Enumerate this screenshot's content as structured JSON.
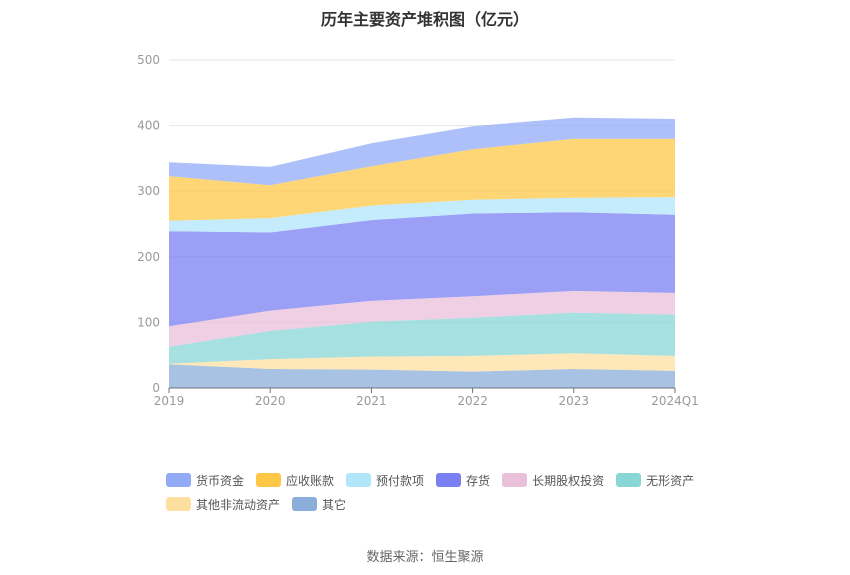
{
  "chart_data": {
    "type": "area",
    "title": "历年主要资产堆积图（亿元）",
    "categories": [
      "2019",
      "2020",
      "2021",
      "2022",
      "2023",
      "2024Q1"
    ],
    "ylim": [
      0,
      500
    ],
    "yticks": [
      "0",
      "100",
      "200",
      "300",
      "400",
      "500"
    ],
    "grid": true,
    "legend_position": "bottom",
    "series": [
      {
        "name": "其它",
        "values": [
          36,
          29,
          28,
          25,
          29,
          26
        ],
        "color": "#8aaed8"
      },
      {
        "name": "其他非流动资产",
        "values": [
          1,
          15,
          20,
          24,
          24,
          23
        ],
        "color": "#fddfa0"
      },
      {
        "name": "无形资产",
        "values": [
          26,
          43,
          53,
          58,
          62,
          63
        ],
        "color": "#88d6d5"
      },
      {
        "name": "长期股权投资",
        "values": [
          31,
          31,
          32,
          33,
          33,
          33
        ],
        "color": "#eabfda"
      },
      {
        "name": "存货",
        "values": [
          145,
          119,
          123,
          126,
          120,
          119
        ],
        "color": "#7a7ff2"
      },
      {
        "name": "预付款项",
        "values": [
          16,
          22,
          22,
          21,
          22,
          27
        ],
        "color": "#b2e6fb"
      },
      {
        "name": "应收账款",
        "values": [
          68,
          50,
          60,
          77,
          90,
          89
        ],
        "color": "#fdc847"
      },
      {
        "name": "货币资金",
        "values": [
          21,
          28,
          35,
          35,
          32,
          30
        ],
        "color": "#93abf7"
      }
    ],
    "legend_order": [
      "货币资金",
      "应收账款",
      "预付款项",
      "存货",
      "长期股权投资",
      "无形资产",
      "其他非流动资产",
      "其它"
    ]
  },
  "source_text": "数据来源：恒生聚源"
}
